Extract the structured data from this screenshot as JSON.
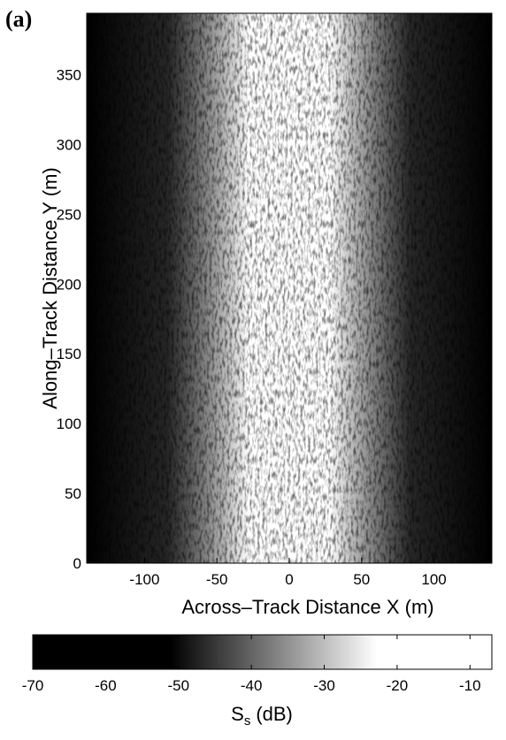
{
  "chart_data": {
    "type": "heatmap",
    "panel_label": "(a)",
    "xlabel": "Across–Track Distance X (m)",
    "ylabel": "Along–Track Distance Y (m)",
    "xlim": [
      -140,
      140
    ],
    "xticks": [
      -100,
      -50,
      0,
      50,
      100
    ],
    "ylim": [
      0,
      394
    ],
    "yticks": [
      0,
      50,
      100,
      150,
      200,
      250,
      300,
      350
    ],
    "colormap": [
      "#000000",
      "#ffffff"
    ],
    "colorbar": {
      "label": "S",
      "label_subscript": "s",
      "label_unit": "(dB)",
      "lim": [
        -70,
        -7
      ],
      "ticks": [
        -70,
        -60,
        -50,
        -40,
        -30,
        -20,
        -10
      ]
    }
  }
}
